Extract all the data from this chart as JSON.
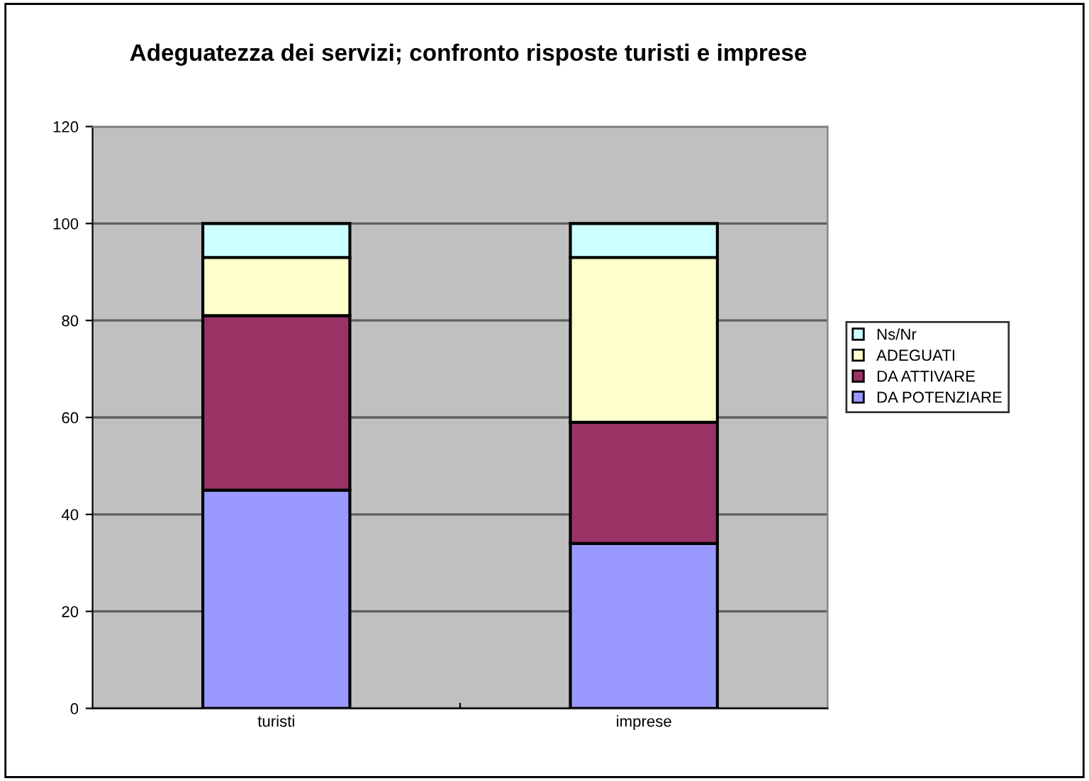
{
  "chart_data": {
    "type": "bar",
    "title": "Adeguatezza dei servizi; confronto risposte turisti e imprese",
    "stacked": true,
    "categories": [
      "turisti",
      "imprese"
    ],
    "series": [
      {
        "name": "DA POTENZIARE",
        "color": "#9999ff",
        "values": [
          45,
          34
        ]
      },
      {
        "name": "DA ATTIVARE",
        "color": "#993366",
        "values": [
          36,
          25
        ]
      },
      {
        "name": "ADEGUATI",
        "color": "#ffffcc",
        "values": [
          12,
          34
        ]
      },
      {
        "name": "Ns/Nr",
        "color": "#ccffff",
        "values": [
          7,
          7
        ]
      }
    ],
    "ylim": [
      0,
      120
    ],
    "yticks": [
      0,
      20,
      40,
      60,
      80,
      100,
      120
    ],
    "grid": "y",
    "legend": "right"
  }
}
